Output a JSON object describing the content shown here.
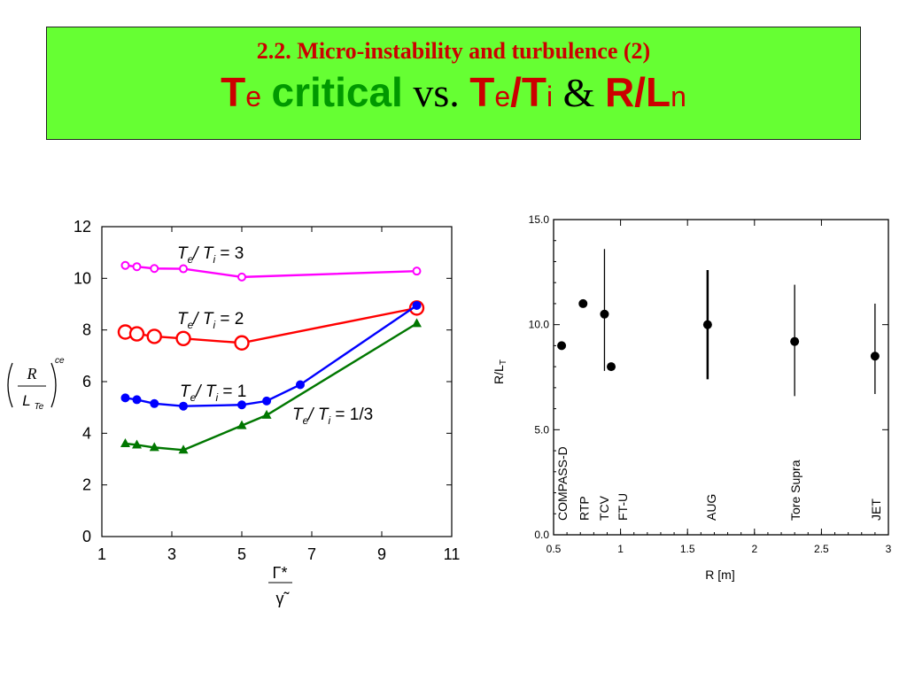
{
  "banner": {
    "line1": "2.2. Micro-instability and turbulence (2)",
    "line2": {
      "te_T": "T",
      "te_e": "e",
      "critical": "critical",
      "vs": "vs.",
      "r_T": "T",
      "r_e": "e",
      "slash": "/T",
      "r_i": "i",
      "amp": "&",
      "R": "R",
      "slashL": "/L",
      "n": "n"
    }
  },
  "chart_data": [
    {
      "type": "line",
      "xlabel_num": "Γ*",
      "xlabel_den": "γ̃",
      "ylabel": {
        "num": "R",
        "den": "L",
        "den_sub": "Te",
        "sup": "ce"
      },
      "xlim": [
        1,
        11
      ],
      "ylim": [
        0,
        12
      ],
      "xticks": [
        1,
        3,
        5,
        7,
        9,
        11
      ],
      "yticks": [
        0,
        2,
        4,
        6,
        8,
        10,
        12
      ],
      "series": [
        {
          "name": "Te/Ti = 3",
          "color": "#ff00ff",
          "marker": "circle-open-small",
          "x": [
            1.67,
            2.0,
            2.5,
            3.33,
            5.0,
            10.0
          ],
          "y": [
            10.5,
            10.45,
            10.38,
            10.37,
            10.05,
            10.28
          ]
        },
        {
          "name": "Te/Ti = 2",
          "color": "#ff0000",
          "marker": "circle-open-large",
          "x": [
            1.67,
            2.0,
            2.5,
            3.33,
            5.0,
            10.0
          ],
          "y": [
            7.92,
            7.85,
            7.75,
            7.67,
            7.5,
            8.85
          ]
        },
        {
          "name": "Te/Ti = 1",
          "color": "#0000ff",
          "marker": "circle-filled",
          "x": [
            1.67,
            2.0,
            2.5,
            3.33,
            5.0,
            5.71,
            6.67,
            10.0
          ],
          "y": [
            5.37,
            5.3,
            5.15,
            5.05,
            5.1,
            5.25,
            5.88,
            8.95
          ]
        },
        {
          "name": "Te/Ti = 1/3",
          "color": "#007700",
          "marker": "triangle-filled",
          "x": [
            1.67,
            2.0,
            2.5,
            3.33,
            5.0,
            5.71,
            10.0
          ],
          "y": [
            3.6,
            3.55,
            3.45,
            3.35,
            4.3,
            4.7,
            8.25
          ]
        }
      ],
      "annotations": [
        {
          "series": 0,
          "T1": "T",
          "s1": "e",
          "T2": "/ T",
          "s2": "i",
          "rhs": " = 3"
        },
        {
          "series": 1,
          "T1": "T",
          "s1": "e",
          "T2": "/ T",
          "s2": "i",
          "rhs": " = 2"
        },
        {
          "series": 2,
          "T1": "T",
          "s1": "e",
          "T2": "/ T",
          "s2": "i",
          "rhs": " = 1"
        },
        {
          "series": 3,
          "T1": "T",
          "s1": "e",
          "T2": "/ T",
          "s2": "i",
          "rhs": " = 1/3"
        }
      ]
    },
    {
      "type": "scatter",
      "xlabel": "R [m]",
      "ylabel": "R/L",
      "ylabel_sub": "T",
      "xlim": [
        0.5,
        3
      ],
      "ylim": [
        0,
        15
      ],
      "xticks": [
        0.5,
        1,
        1.5,
        2,
        2.5,
        3
      ],
      "xtick_labels": [
        "0.5",
        "1",
        "1.5",
        "2",
        "2.5",
        "3"
      ],
      "yticks": [
        0,
        5,
        10,
        15
      ],
      "ytick_labels": [
        "0.0",
        "5.0",
        "10.0",
        "15.0"
      ],
      "points": [
        {
          "label": "COMPASS-D",
          "x": 0.56,
          "y": 9.0
        },
        {
          "label": "RTP",
          "x": 0.72,
          "y": 11.0
        },
        {
          "label": "TCV",
          "x": 0.88,
          "y": 10.5,
          "err_low": 7.8,
          "err_high": 13.6
        },
        {
          "label": "FT-U",
          "x": 0.93,
          "y": 8.0
        },
        {
          "label": "AUG",
          "x": 1.65,
          "y": 10.0,
          "err_low": 7.4,
          "err_high": 12.6
        },
        {
          "label": "Tore Supra",
          "x": 2.3,
          "y": 9.2,
          "err_low": 6.6,
          "err_high": 11.9
        },
        {
          "label": "JET",
          "x": 2.9,
          "y": 8.5,
          "err_low": 6.7,
          "err_high": 11.0
        }
      ]
    }
  ]
}
